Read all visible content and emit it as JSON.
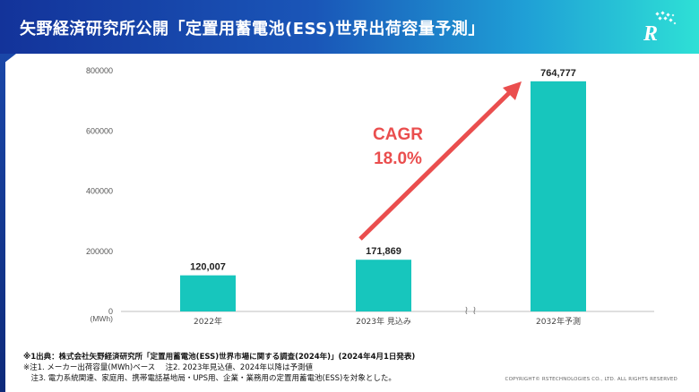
{
  "header": {
    "title": "矢野経済研究所公開「定置用蓄電池(ESS)世界出荷容量予測」",
    "logo_text": "R"
  },
  "chart_data": {
    "type": "bar",
    "unit_label": "(MWh)",
    "categories": [
      "2022年",
      "2023年 見込み",
      "2032年予測"
    ],
    "values": [
      120007,
      171869,
      764777
    ],
    "value_labels": [
      "120,007",
      "171,869",
      "764,777"
    ],
    "ylim": [
      0,
      800000
    ],
    "yticks": [
      0,
      200000,
      400000,
      600000,
      800000
    ],
    "grid": false,
    "bar_color": "#17c6bd",
    "annotation": {
      "line1": "CAGR",
      "line2": "18.0%",
      "color": "#ea4e4e"
    },
    "axis_break_symbol": "≀ ≀"
  },
  "footnotes": {
    "line1": "※1出典：株式会社矢野経済研究所「定置用蓄電池(ESS)世界市場に関する調査(2024年)」(2024年4月1日発表)",
    "line2": "※注1. メーカー出荷容量(MWh)ベース　 注2. 2023年見込値、2024年以降は予測値",
    "line3": "　注3. 電力系統関連、家庭用、携帯電話基地局・UPS用、企業・業務用の定置用蓄電池(ESS)を対象とした。"
  },
  "copyright": "COPYRIGHT© RSTECHNOLOGIES CO., LTD. ALL RIGHTS RESERVED"
}
